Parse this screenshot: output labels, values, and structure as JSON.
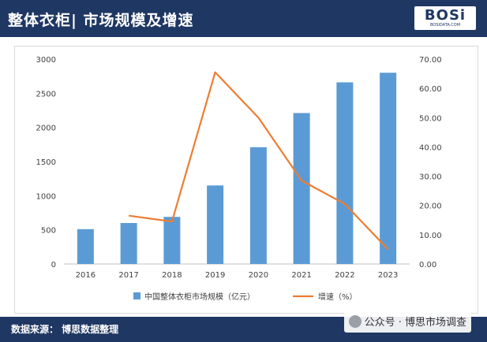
{
  "header": {
    "title": "整体衣柜| 市场规模及增速"
  },
  "logo": {
    "word": "BOSi",
    "sub": "BOSIDATA.COM"
  },
  "footer": {
    "source": "数据来源： 博思数据整理"
  },
  "watermark": {
    "text": "公众号 · 博思市场调查"
  },
  "colors": {
    "bar": "#5b9bd5",
    "line": "#ed7d31",
    "header": "#1f3763"
  },
  "chart_data": {
    "type": "bar",
    "categories": [
      "2016",
      "2017",
      "2018",
      "2019",
      "2020",
      "2021",
      "2022",
      "2023"
    ],
    "series": [
      {
        "name": "中国整体衣柜市场规模（亿元）",
        "type": "bar",
        "axis": "left",
        "values": [
          510,
          600,
          690,
          1150,
          1710,
          2210,
          2660,
          2800
        ]
      },
      {
        "name": "增速（%）",
        "type": "line",
        "axis": "right",
        "values": [
          null,
          16.5,
          14.5,
          65.5,
          50.0,
          28.5,
          20.5,
          5.0
        ]
      }
    ],
    "yticks": [
      "0",
      "500",
      "1000",
      "1500",
      "2000",
      "2500",
      "3000"
    ],
    "y2ticks": [
      "0.00",
      "10.00",
      "20.00",
      "30.00",
      "40.00",
      "50.00",
      "60.00",
      "70.00"
    ],
    "ylim": [
      0,
      3000
    ],
    "y2lim": [
      0,
      70
    ],
    "grid": false,
    "legend": "bottom"
  }
}
